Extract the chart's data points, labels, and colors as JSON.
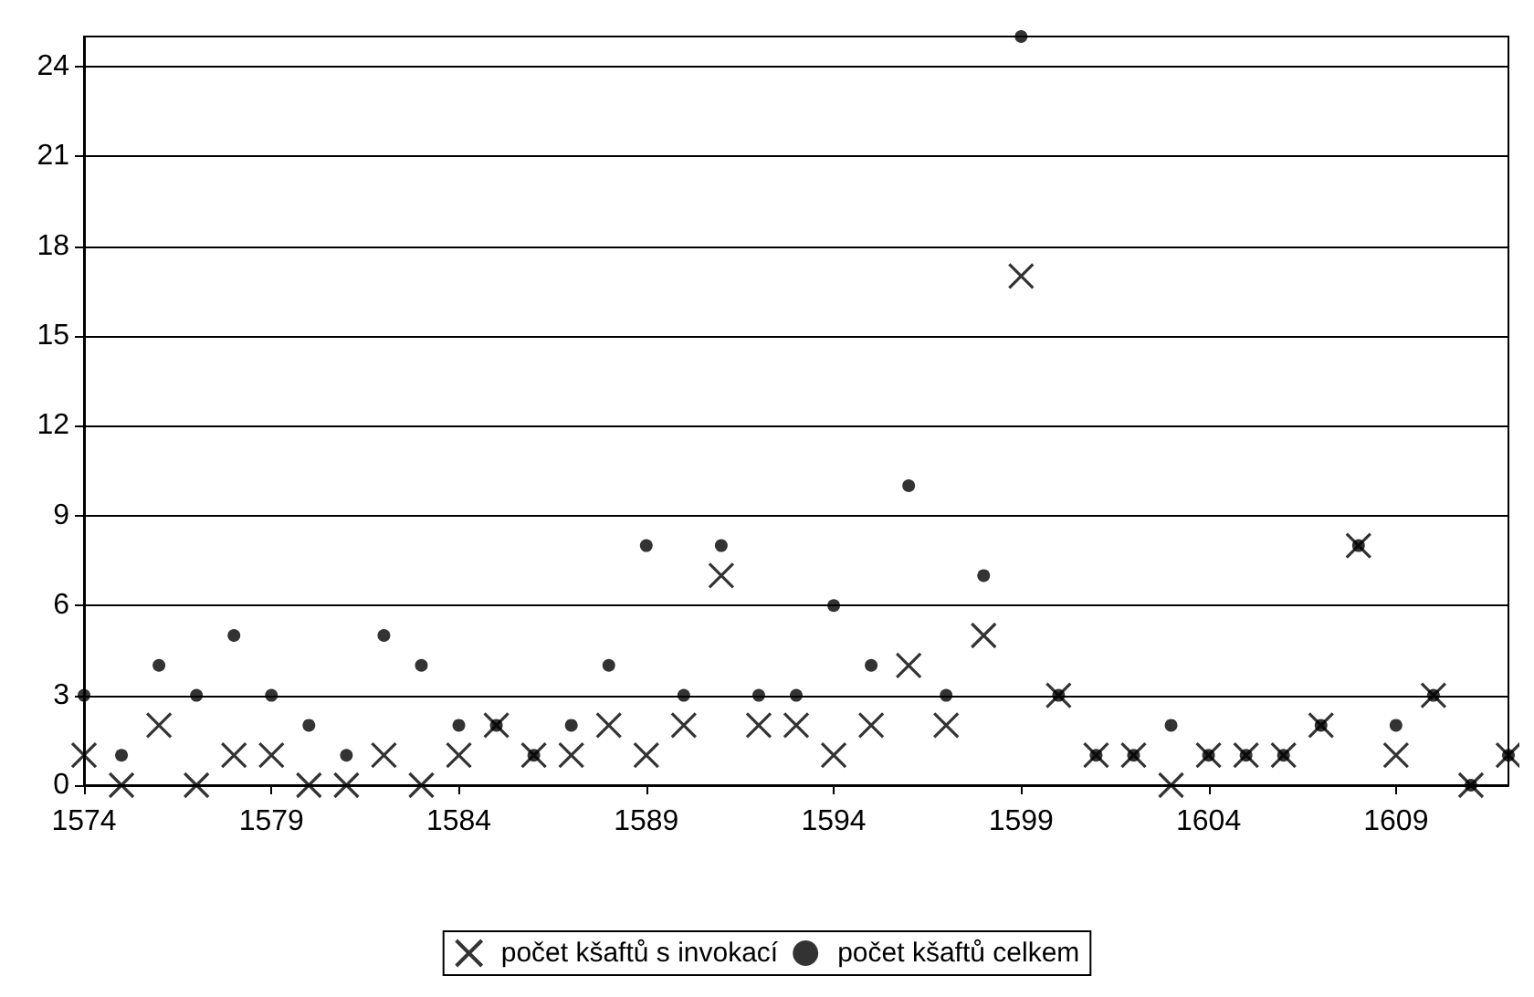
{
  "chart_data": {
    "type": "scatter",
    "x": [
      1574,
      1575,
      1576,
      1577,
      1578,
      1579,
      1580,
      1581,
      1582,
      1583,
      1584,
      1585,
      1586,
      1587,
      1588,
      1589,
      1590,
      1591,
      1592,
      1593,
      1594,
      1595,
      1596,
      1597,
      1598,
      1599,
      1600,
      1601,
      1602,
      1603,
      1604,
      1605,
      1606,
      1607,
      1608,
      1609,
      1610,
      1611,
      1612
    ],
    "series": [
      {
        "name": "počet kšaftů s invokací",
        "color": "#000000",
        "marker": "cross",
        "values": [
          1,
          0,
          2,
          0,
          1,
          1,
          0,
          0,
          1,
          0,
          1,
          2,
          1,
          1,
          2,
          1,
          2,
          7,
          2,
          2,
          1,
          2,
          4,
          2,
          5,
          17,
          3,
          1,
          1,
          0,
          1,
          1,
          1,
          2,
          8,
          1,
          3,
          0,
          1
        ]
      },
      {
        "name": "počet kšaftů celkem",
        "color": "#000000",
        "marker": "circle",
        "values": [
          3,
          1,
          4,
          3,
          5,
          3,
          2,
          1,
          5,
          4,
          2,
          2,
          1,
          2,
          4,
          8,
          3,
          8,
          3,
          3,
          6,
          4,
          10,
          3,
          7,
          25,
          3,
          1,
          1,
          2,
          1,
          1,
          1,
          2,
          8,
          2,
          3,
          0,
          1
        ]
      }
    ],
    "xlim": [
      1574,
      1612
    ],
    "xticks": [
      1574,
      1579,
      1584,
      1589,
      1594,
      1599,
      1604,
      1609
    ],
    "ylim": [
      0,
      25
    ],
    "yticks": [
      0,
      3,
      6,
      9,
      12,
      15,
      18,
      21,
      24
    ],
    "grid": "y",
    "legend": "bottom"
  }
}
